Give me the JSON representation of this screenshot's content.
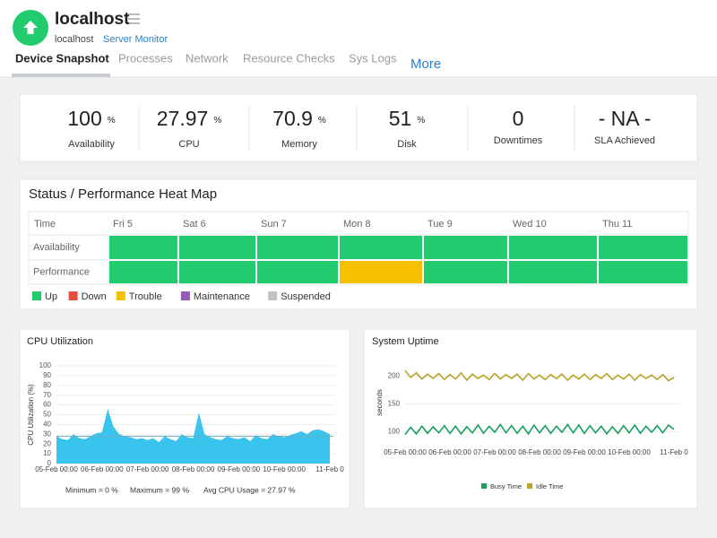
{
  "header": {
    "title": "localhost",
    "host": "localhost",
    "monitor_link": "Server Monitor"
  },
  "tabs": {
    "items": [
      "Device Snapshot",
      "Processes",
      "Network",
      "Resource Checks",
      "Sys Logs"
    ],
    "active": 0,
    "more": "More"
  },
  "summary": [
    {
      "value": "100",
      "unit": "%",
      "label": "Availability"
    },
    {
      "value": "27.97",
      "unit": "%",
      "label": "CPU"
    },
    {
      "value": "70.9",
      "unit": "%",
      "label": "Memory"
    },
    {
      "value": "51",
      "unit": "%",
      "label": "Disk"
    },
    {
      "value": "0",
      "label": "Downtimes"
    },
    {
      "value": "- NA -",
      "label": "SLA Achieved"
    }
  ],
  "heatmap": {
    "title": "Status / Performance Heat Map",
    "corner": "Time",
    "columns": [
      "Fri 5",
      "Sat 6",
      "Sun 7",
      "Mon 8",
      "Tue 9",
      "Wed 10",
      "Thu 11"
    ],
    "rows": [
      {
        "label": "Availability",
        "statuses": [
          "Up",
          "Up",
          "Up",
          "Up",
          "Up",
          "Up",
          "Up"
        ]
      },
      {
        "label": "Performance",
        "statuses": [
          "Up",
          "Up",
          "Up",
          "Trouble",
          "Up",
          "Up",
          "Up"
        ]
      }
    ],
    "legend": [
      {
        "label": "Up",
        "color": "#22cc6e"
      },
      {
        "label": "Down",
        "color": "#e74c3c"
      },
      {
        "label": "Trouble",
        "color": "#f6c100"
      },
      {
        "label": "Maintenance",
        "color": "#9b59b6"
      },
      {
        "label": "Suspended",
        "color": "#bdc3c7"
      }
    ]
  },
  "chart_data": [
    {
      "type": "area",
      "title": "CPU Utilization",
      "ylabel": "CPU Utilization (%)",
      "color": "#38c4ec",
      "average_color": "#6aaec6",
      "categories": [
        "05-Feb 00:00",
        null,
        null,
        null,
        null,
        null,
        null,
        null,
        "06-Feb 00:00",
        null,
        null,
        null,
        null,
        null,
        null,
        null,
        "07-Feb 00:00",
        null,
        null,
        null,
        null,
        null,
        null,
        null,
        "08-Feb 00:00",
        null,
        null,
        null,
        null,
        null,
        null,
        null,
        "09-Feb 00:00",
        null,
        null,
        null,
        null,
        null,
        null,
        null,
        "10-Feb 00:00",
        null,
        null,
        null,
        null,
        null,
        null,
        null,
        "11-Feb 0"
      ],
      "values": [
        28,
        25,
        24,
        30,
        26,
        25,
        28,
        31,
        32,
        56,
        38,
        30,
        28,
        27,
        25,
        26,
        24,
        26,
        22,
        28,
        25,
        23,
        30,
        27,
        26,
        52,
        30,
        27,
        25,
        24,
        28,
        26,
        25,
        27,
        23,
        29,
        26,
        25,
        30,
        28,
        27,
        29,
        31,
        33,
        30,
        34,
        35,
        33,
        30
      ],
      "average": 27.97,
      "ylim": [
        0,
        100
      ],
      "yticks": [
        0,
        10,
        20,
        30,
        40,
        50,
        60,
        70,
        80,
        90,
        100
      ],
      "grid": true,
      "stats": [
        "Minimum = 0 %",
        "Maximum = 99 %",
        "Avg CPU Usage = 27.97 %"
      ]
    },
    {
      "type": "line",
      "title": "System Uptime",
      "ylabel": "seconds",
      "categories": [
        "05-Feb 00:00",
        null,
        null,
        null,
        null,
        null,
        null,
        null,
        "06-Feb 00:00",
        null,
        null,
        null,
        null,
        null,
        null,
        null,
        "07-Feb 00:00",
        null,
        null,
        null,
        null,
        null,
        null,
        null,
        "08-Feb 00:00",
        null,
        null,
        null,
        null,
        null,
        null,
        null,
        "09-Feb 00:00",
        null,
        null,
        null,
        null,
        null,
        null,
        null,
        "10-Feb 00:00",
        null,
        null,
        null,
        null,
        null,
        null,
        null,
        "11-Feb 0"
      ],
      "series": [
        {
          "name": "Busy Time",
          "color": "#1aa060",
          "values": [
            95,
            108,
            96,
            110,
            97,
            109,
            98,
            111,
            97,
            110,
            96,
            109,
            98,
            112,
            97,
            110,
            99,
            113,
            98,
            111,
            97,
            110,
            96,
            112,
            98,
            111,
            97,
            110,
            99,
            113,
            98,
            112,
            97,
            111,
            98,
            110,
            96,
            109,
            97,
            111,
            98,
            112,
            97,
            110,
            99,
            111,
            98,
            112,
            104
          ]
        },
        {
          "name": "Idle Time",
          "color": "#b8a42a",
          "values": [
            210,
            198,
            206,
            195,
            204,
            196,
            205,
            194,
            203,
            195,
            206,
            193,
            204,
            196,
            202,
            194,
            205,
            195,
            203,
            196,
            204,
            193,
            205,
            195,
            202,
            194,
            203,
            196,
            204,
            193,
            202,
            195,
            204,
            194,
            203,
            196,
            205,
            194,
            202,
            195,
            204,
            193,
            203,
            196,
            202,
            194,
            203,
            192,
            198
          ]
        }
      ],
      "ylim": [
        70,
        235
      ],
      "yticks": [
        100,
        150,
        200
      ],
      "grid": true
    }
  ]
}
